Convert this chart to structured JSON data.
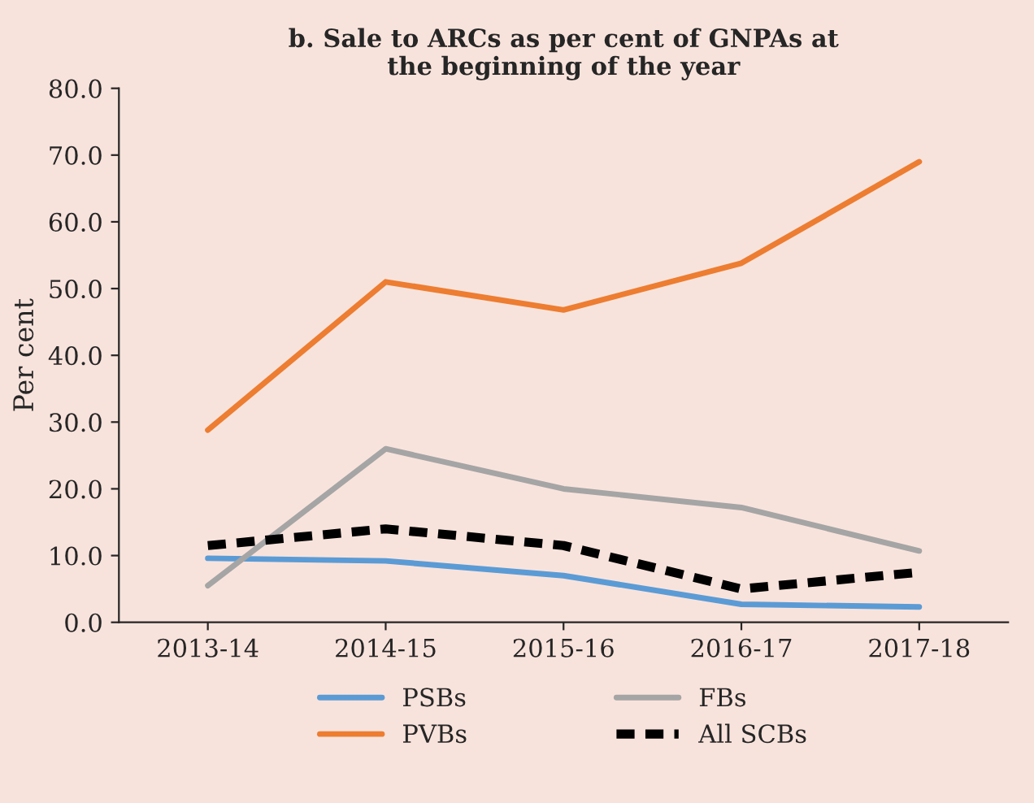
{
  "chart_data": {
    "type": "line",
    "title": "b. Sale to ARCs as per cent of GNPAs at\nthe beginning of the year",
    "ylabel": "Per cent",
    "categories": [
      "2013-14",
      "2014-15",
      "2015-16",
      "2016-17",
      "2017-18"
    ],
    "series": [
      {
        "name": "PSBs",
        "color": "#5b9bd5",
        "values": [
          9.6,
          9.2,
          7.0,
          2.7,
          2.3
        ]
      },
      {
        "name": "FBs",
        "color": "#a5a5a5",
        "values": [
          5.5,
          26.0,
          20.0,
          17.2,
          10.7
        ]
      },
      {
        "name": "PVBs",
        "color": "#ed7d31",
        "values": [
          28.8,
          51.0,
          46.8,
          53.8,
          69.0
        ]
      },
      {
        "name": "All SCBs",
        "color": "#000000",
        "values": [
          11.5,
          14.0,
          11.5,
          5.0,
          7.5
        ],
        "line_style": "dashed"
      }
    ],
    "ylim": [
      0,
      80
    ],
    "yticks": [
      {
        "value": 0,
        "label": "0.0"
      },
      {
        "value": 10,
        "label": "10.0"
      },
      {
        "value": 20,
        "label": "20.0"
      },
      {
        "value": 30,
        "label": "30.0"
      },
      {
        "value": 40,
        "label": "40.0"
      },
      {
        "value": 50,
        "label": "50.0"
      },
      {
        "value": 60,
        "label": "60.0"
      },
      {
        "value": 70,
        "label": "70.0"
      },
      {
        "value": 80,
        "label": "80.0"
      }
    ],
    "grid": false,
    "legend": "bottom",
    "line_style": "solid",
    "marker": "none"
  }
}
